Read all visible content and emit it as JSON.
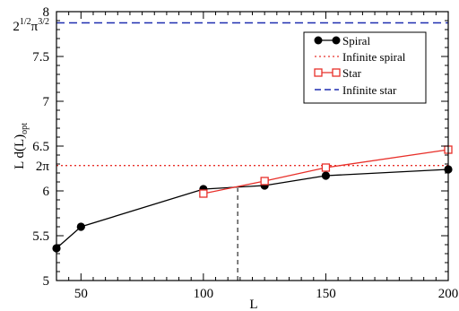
{
  "chart_data": {
    "type": "line",
    "title": "",
    "xlabel": "L",
    "ylabel": "L d(L)",
    "ylabel_subscript": "opt",
    "xlim": [
      40,
      200
    ],
    "ylim": [
      5,
      8
    ],
    "xticks": [
      50,
      100,
      150,
      200
    ],
    "yticks": [
      5,
      5.5,
      6,
      6.5,
      7,
      7.5,
      8
    ],
    "grid": false,
    "legend_position": "top-right",
    "series": [
      {
        "name": "Spiral",
        "style": "solid line, filled circle markers",
        "color": "#000000",
        "x": [
          40,
          50,
          100,
          125,
          150,
          200
        ],
        "y": [
          5.36,
          5.6,
          6.02,
          6.06,
          6.17,
          6.24
        ]
      },
      {
        "name": "Infinite spiral",
        "style": "dotted horizontal line",
        "color": "#e8302a",
        "y_const": 6.2832,
        "y_label": "2π"
      },
      {
        "name": "Star",
        "style": "solid line, open square markers",
        "color": "#e8302a",
        "x": [
          100,
          125,
          150,
          200
        ],
        "y": [
          5.97,
          6.11,
          6.26,
          6.46
        ]
      },
      {
        "name": "Infinite star",
        "style": "dashed horizontal line",
        "color": "#1f2fb0",
        "y_const": 7.8748,
        "y_label": "2^(1/2)π^(3/2)"
      }
    ],
    "annotations": [
      {
        "type": "vertical-dashed-line",
        "x": 114,
        "y_to": 6.03,
        "color": "#000000"
      }
    ],
    "special_tick_labels": {
      "two_pi": "2π",
      "star_limit_base": "2",
      "star_limit_exp1": "1/2",
      "star_limit_pi": "π",
      "star_limit_exp2": "3/2"
    }
  }
}
